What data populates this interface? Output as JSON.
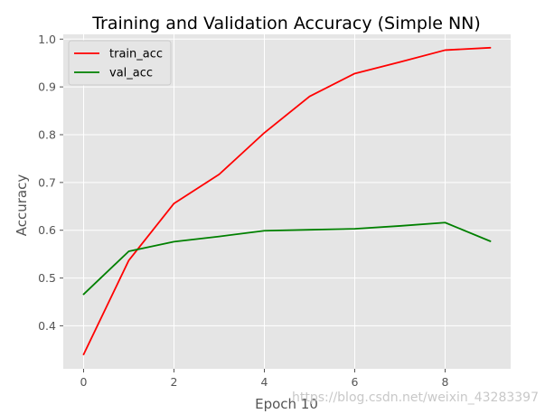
{
  "chart_data": {
    "type": "line",
    "title": "Training and Validation Accuracy (Simple NN)",
    "xlabel": "Epoch 10",
    "ylabel": "Accuracy",
    "x": [
      0,
      1,
      2,
      3,
      4,
      5,
      6,
      7,
      8,
      9
    ],
    "xlim": [
      -0.45,
      9.45
    ],
    "ylim": [
      0.31,
      1.01
    ],
    "xticks": [
      0,
      2,
      4,
      6,
      8
    ],
    "yticks": [
      0.4,
      0.5,
      0.6,
      0.7,
      0.8,
      0.9,
      1.0
    ],
    "grid": true,
    "legend_position": "top-left",
    "series": [
      {
        "name": "train_acc",
        "color": "#ff0000",
        "values": [
          0.34,
          0.537,
          0.656,
          0.717,
          0.804,
          0.88,
          0.928,
          0.952,
          0.977,
          0.982
        ]
      },
      {
        "name": "val_acc",
        "color": "#008000",
        "values": [
          0.466,
          0.556,
          0.576,
          0.587,
          0.599,
          0.601,
          0.603,
          0.609,
          0.616,
          0.577
        ]
      }
    ]
  },
  "watermark": "https://blog.csdn.net/weixin_43283397"
}
